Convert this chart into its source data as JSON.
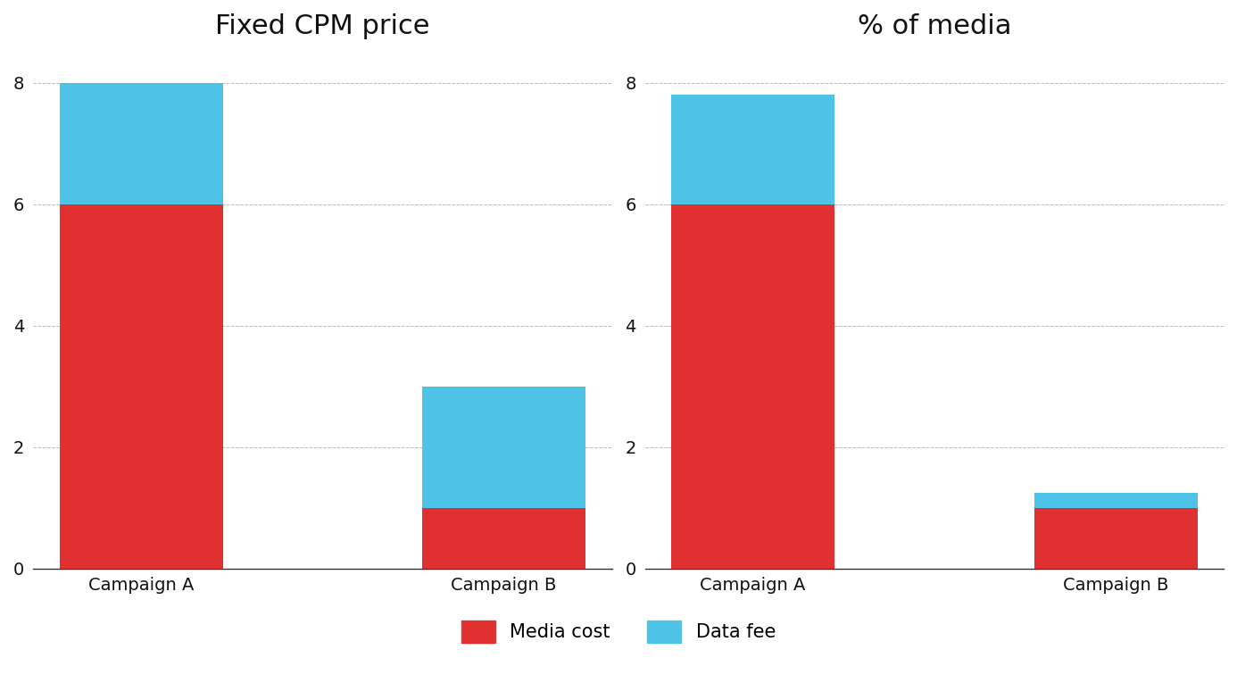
{
  "chart1": {
    "title": "Fixed CPM price",
    "categories": [
      "Campaign A",
      "Campaign B"
    ],
    "media_cost": [
      6,
      1
    ],
    "data_fee": [
      2,
      2
    ]
  },
  "chart2": {
    "title": "% of media",
    "categories": [
      "Campaign A",
      "Campaign B"
    ],
    "media_cost": [
      6,
      1
    ],
    "data_fee": [
      1.8,
      0.25
    ]
  },
  "media_color": "#e03030",
  "data_fee_color": "#4dc3e8",
  "background_color": "#ffffff",
  "ylim": [
    0,
    8.5
  ],
  "yticks": [
    0,
    2,
    4,
    6,
    8
  ],
  "bar_width": 0.45,
  "title_fontsize": 22,
  "tick_fontsize": 14,
  "legend_fontsize": 15
}
